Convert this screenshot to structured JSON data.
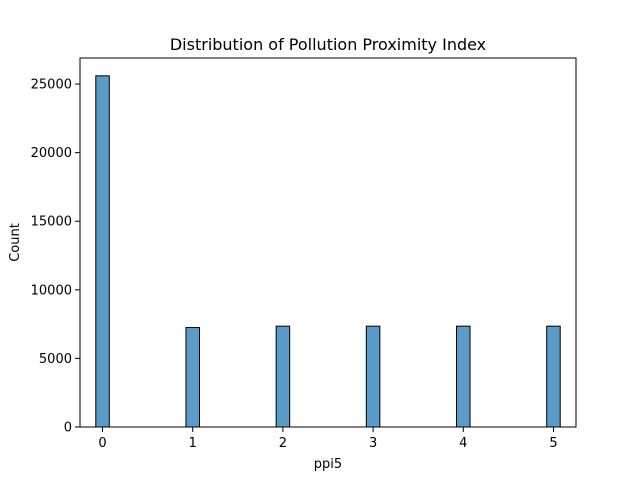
{
  "chart_data": {
    "type": "bar",
    "title": "Distribution of Pollution Proximity Index",
    "xlabel": "ppi5",
    "ylabel": "Count",
    "categories": [
      0,
      1,
      2,
      3,
      4,
      5
    ],
    "values": [
      25600,
      7250,
      7350,
      7350,
      7350,
      7350
    ],
    "xlim": [
      -0.25,
      5.25
    ],
    "ylim": [
      0,
      26900
    ],
    "xticks": [
      "0",
      "1",
      "2",
      "3",
      "4",
      "5"
    ],
    "yticks": [
      "0",
      "5000",
      "10000",
      "15000",
      "20000",
      "25000"
    ],
    "bin_width": 0.15,
    "grid": false,
    "legend": "none",
    "bar_color": "#5b9bc8",
    "edge_color": "#000000"
  }
}
